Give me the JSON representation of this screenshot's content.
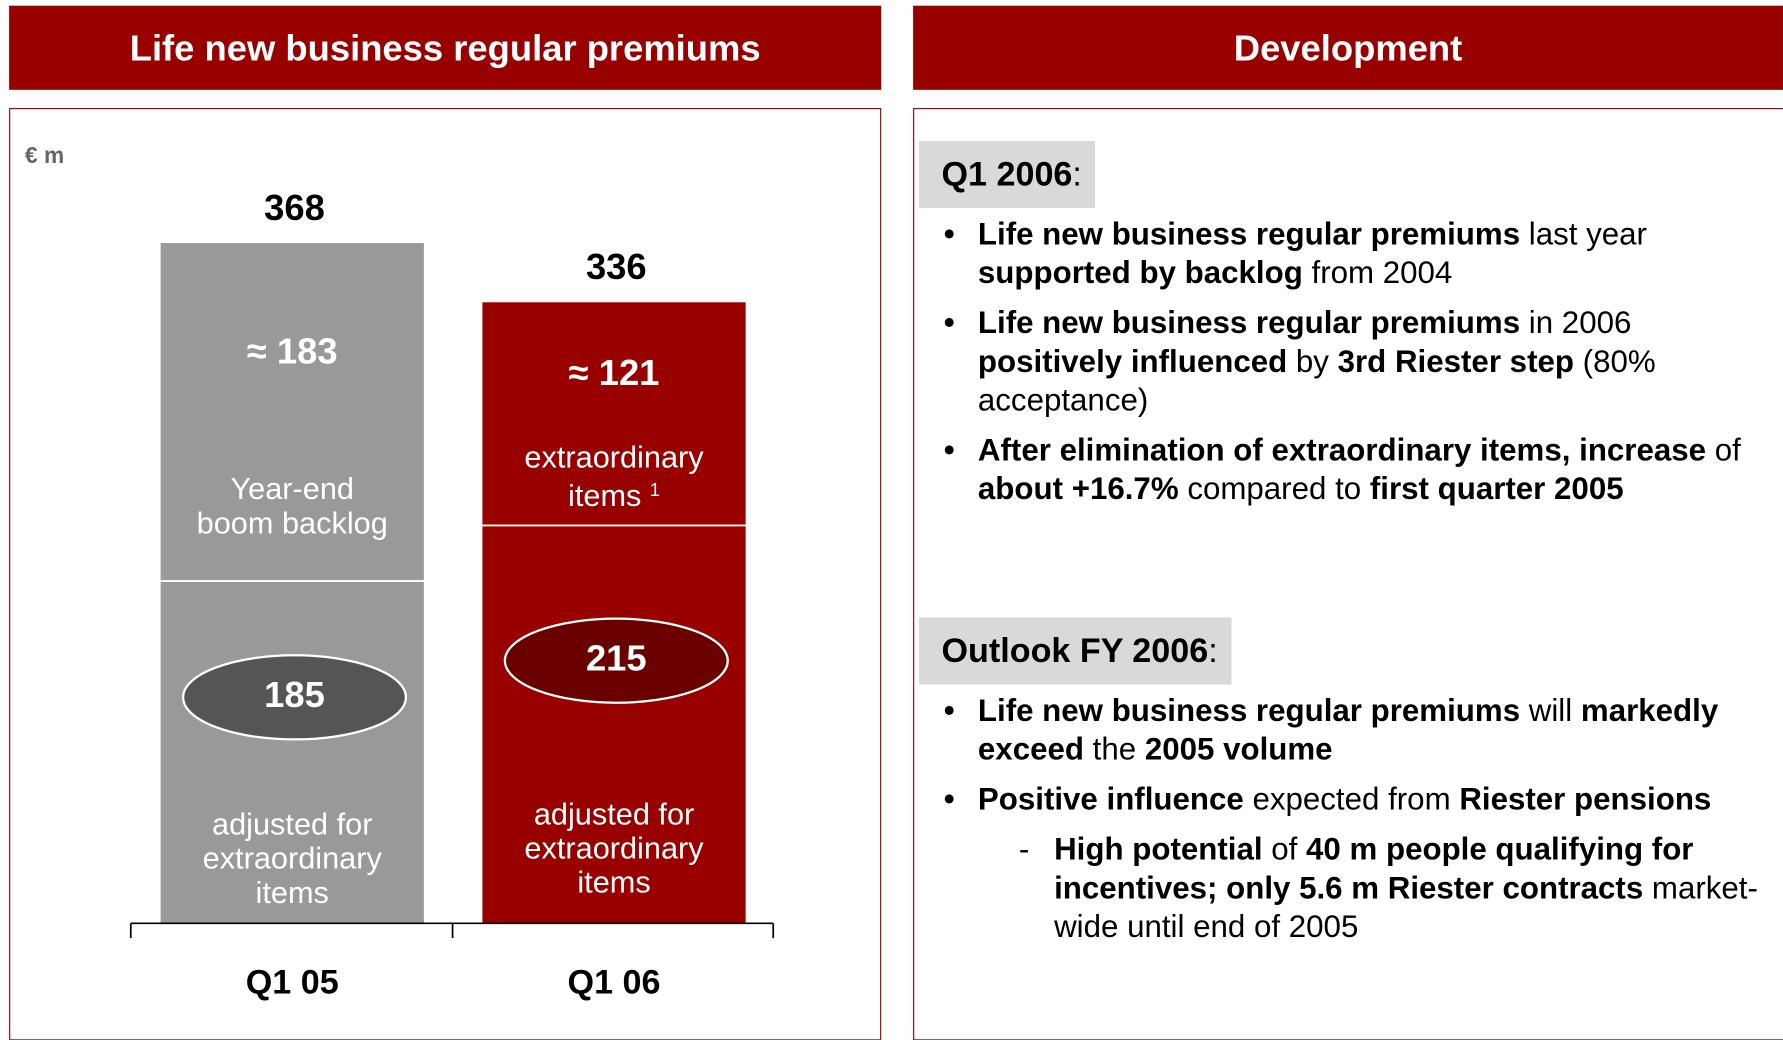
{
  "left_header": "Life new business regular premiums",
  "right_header": "Development",
  "chart_data": {
    "type": "stacked-bar",
    "unit": "€ m",
    "categories": [
      "Q1 05",
      "Q1 06"
    ],
    "totals": [
      368,
      336
    ],
    "bar_colors": [
      "#999999",
      "#990000"
    ],
    "ellipse_colors": [
      "#555555",
      "#6b0000"
    ],
    "series": [
      {
        "values": [
          185,
          215
        ],
        "labels": [
          "adjusted for extraordinary items",
          "adjusted for extraordinary items"
        ]
      },
      {
        "values": [
          183,
          121
        ],
        "value_labels": [
          "≈ 183",
          "≈ 121"
        ],
        "labels": [
          "Year-end boom backlog",
          "extraordinary items"
        ],
        "footnotes": [
          null,
          "1"
        ]
      }
    ]
  },
  "sections": [
    {
      "heading": [
        {
          "t": "Q1 2006",
          "b": true
        },
        {
          "t": ":",
          "b": false
        }
      ],
      "bullets": [
        {
          "runs": [
            {
              "t": "Life new business regular premiums",
              "b": true
            },
            {
              "t": " last year ",
              "b": false
            },
            {
              "t": "supported by backlog",
              "b": true
            },
            {
              "t": " from 2004",
              "b": false
            }
          ]
        },
        {
          "runs": [
            {
              "t": "Life new business regular premiums",
              "b": true
            },
            {
              "t": " in 2006 ",
              "b": false
            },
            {
              "t": "positively influenced",
              "b": true
            },
            {
              "t": " by ",
              "b": false
            },
            {
              "t": "3rd Riester step",
              "b": true
            },
            {
              "t": " (80% acceptance)",
              "b": false
            }
          ]
        },
        {
          "runs": [
            {
              "t": "After elimination of extraordinary items, increase",
              "b": true
            },
            {
              "t": " of ",
              "b": false
            },
            {
              "t": "about +16.7%",
              "b": true
            },
            {
              "t": " compared to ",
              "b": false
            },
            {
              "t": "first quarter 2005",
              "b": true
            }
          ]
        }
      ]
    },
    {
      "heading": [
        {
          "t": "Outlook FY 2006",
          "b": true
        },
        {
          "t": ":",
          "b": false
        }
      ],
      "bullets": [
        {
          "runs": [
            {
              "t": "Life new business regular premiums",
              "b": true
            },
            {
              "t": " will ",
              "b": false
            },
            {
              "t": "markedly exceed",
              "b": true
            },
            {
              "t": " the ",
              "b": false
            },
            {
              "t": "2005 volume",
              "b": true
            }
          ]
        },
        {
          "runs": [
            {
              "t": "Positive influence",
              "b": true
            },
            {
              "t": " expected from ",
              "b": false
            },
            {
              "t": "Riester pensions",
              "b": true
            }
          ],
          "sub": [
            {
              "runs": [
                {
                  "t": "High potential",
                  "b": true
                },
                {
                  "t": " of ",
                  "b": false
                },
                {
                  "t": "40 m people qualifying for incentives; only 5.6 m Riester contracts",
                  "b": true
                },
                {
                  "t": " market-wide until end of 2005",
                  "b": false
                }
              ]
            }
          ]
        }
      ]
    }
  ]
}
